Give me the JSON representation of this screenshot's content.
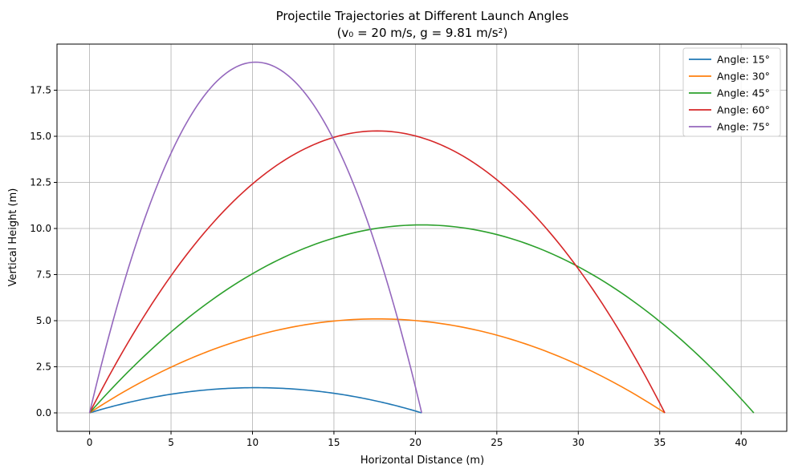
{
  "chart_data": {
    "type": "line",
    "title": "Projectile Trajectories at Different Launch Angles",
    "subtitle": "(v₀ = 20 m/s, g = 9.81 m/s²)",
    "xlabel": "Horizontal Distance (m)",
    "ylabel": "Vertical Height (m)",
    "xlim": [
      -2.0,
      42.8
    ],
    "ylim": [
      -1.0,
      20.0
    ],
    "xticks": [
      0,
      5,
      10,
      15,
      20,
      25,
      30,
      35,
      40
    ],
    "yticks": [
      0.0,
      2.5,
      5.0,
      7.5,
      10.0,
      12.5,
      15.0,
      17.5
    ],
    "xtick_labels": [
      "0",
      "5",
      "10",
      "15",
      "20",
      "25",
      "30",
      "35",
      "40"
    ],
    "ytick_labels": [
      "0.0",
      "2.5",
      "5.0",
      "7.5",
      "10.0",
      "12.5",
      "15.0",
      "17.5"
    ],
    "grid": true,
    "legend_position": "top-right",
    "initial_velocity": 20,
    "gravity": 9.81,
    "series": [
      {
        "name": "Angle: 15°",
        "angle_deg": 15,
        "color": "#1f77b4",
        "range": 20.39,
        "max_height": 1.37
      },
      {
        "name": "Angle: 30°",
        "angle_deg": 30,
        "color": "#ff7f0e",
        "range": 35.31,
        "max_height": 5.1
      },
      {
        "name": "Angle: 45°",
        "angle_deg": 45,
        "color": "#2ca02c",
        "range": 40.77,
        "max_height": 10.19
      },
      {
        "name": "Angle: 60°",
        "angle_deg": 60,
        "color": "#d62728",
        "range": 35.31,
        "max_height": 15.29
      },
      {
        "name": "Angle: 75°",
        "angle_deg": 75,
        "color": "#9467bd",
        "range": 20.39,
        "max_height": 19.02
      }
    ]
  }
}
